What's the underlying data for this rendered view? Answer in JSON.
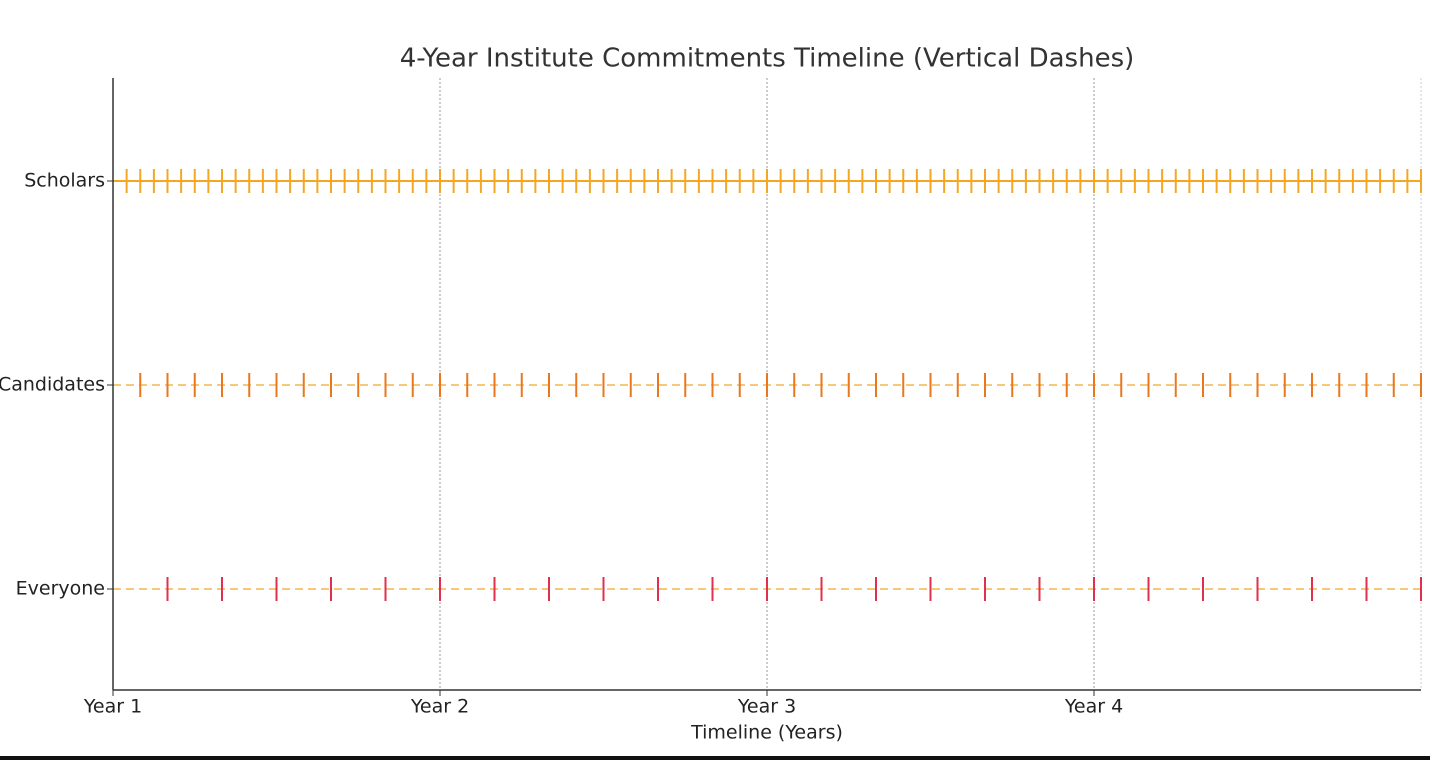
{
  "chart_data": {
    "type": "timeline",
    "title": "4-Year Institute Commitments Timeline (Vertical Dashes)",
    "x_label": "Timeline (Years)",
    "xlim": [
      0,
      48
    ],
    "xticks": [
      {
        "value": 0,
        "label": "Year 1"
      },
      {
        "value": 12,
        "label": "Year 2"
      },
      {
        "value": 24,
        "label": "Year 3"
      },
      {
        "value": 36,
        "label": "Year 4"
      }
    ],
    "grid": true,
    "series": [
      {
        "name": "Scholars",
        "color": "#f5a623",
        "line_color": "#f5a623",
        "line_style": "solid",
        "x": [
          0.5,
          1,
          1.5,
          2,
          2.5,
          3,
          3.5,
          4,
          4.5,
          5,
          5.5,
          6,
          6.5,
          7,
          7.5,
          8,
          8.5,
          9,
          9.5,
          10,
          10.5,
          11,
          11.5,
          12,
          12.5,
          13,
          13.5,
          14,
          14.5,
          15,
          15.5,
          16,
          16.5,
          17,
          17.5,
          18,
          18.5,
          19,
          19.5,
          20,
          20.5,
          21,
          21.5,
          22,
          22.5,
          23,
          23.5,
          24,
          24.5,
          25,
          25.5,
          26,
          26.5,
          27,
          27.5,
          28,
          28.5,
          29,
          29.5,
          30,
          30.5,
          31,
          31.5,
          32,
          32.5,
          33,
          33.5,
          34,
          34.5,
          35,
          35.5,
          36,
          36.5,
          37,
          37.5,
          38,
          38.5,
          39,
          39.5,
          40,
          40.5,
          41,
          41.5,
          42,
          42.5,
          43,
          43.5,
          44,
          44.5,
          45,
          45.5,
          46,
          46.5,
          47,
          47.5,
          48
        ]
      },
      {
        "name": "Candidates",
        "color": "#e8771f",
        "line_color": "#f8c87a",
        "line_style": "dashed",
        "x": [
          1,
          2,
          3,
          4,
          5,
          6,
          7,
          8,
          9,
          10,
          11,
          12,
          13,
          14,
          15,
          16,
          17,
          18,
          19,
          20,
          21,
          22,
          23,
          24,
          25,
          26,
          27,
          28,
          29,
          30,
          31,
          32,
          33,
          34,
          35,
          36,
          37,
          38,
          39,
          40,
          41,
          42,
          43,
          44,
          45,
          46,
          47,
          48
        ]
      },
      {
        "name": "Everyone",
        "color": "#e0304e",
        "line_color": "#f8c87a",
        "line_style": "dashed",
        "x": [
          2,
          4,
          6,
          8,
          10,
          12,
          14,
          16,
          18,
          20,
          22,
          24,
          26,
          28,
          30,
          32,
          34,
          36,
          38,
          40,
          42,
          44,
          46,
          48
        ]
      }
    ]
  }
}
